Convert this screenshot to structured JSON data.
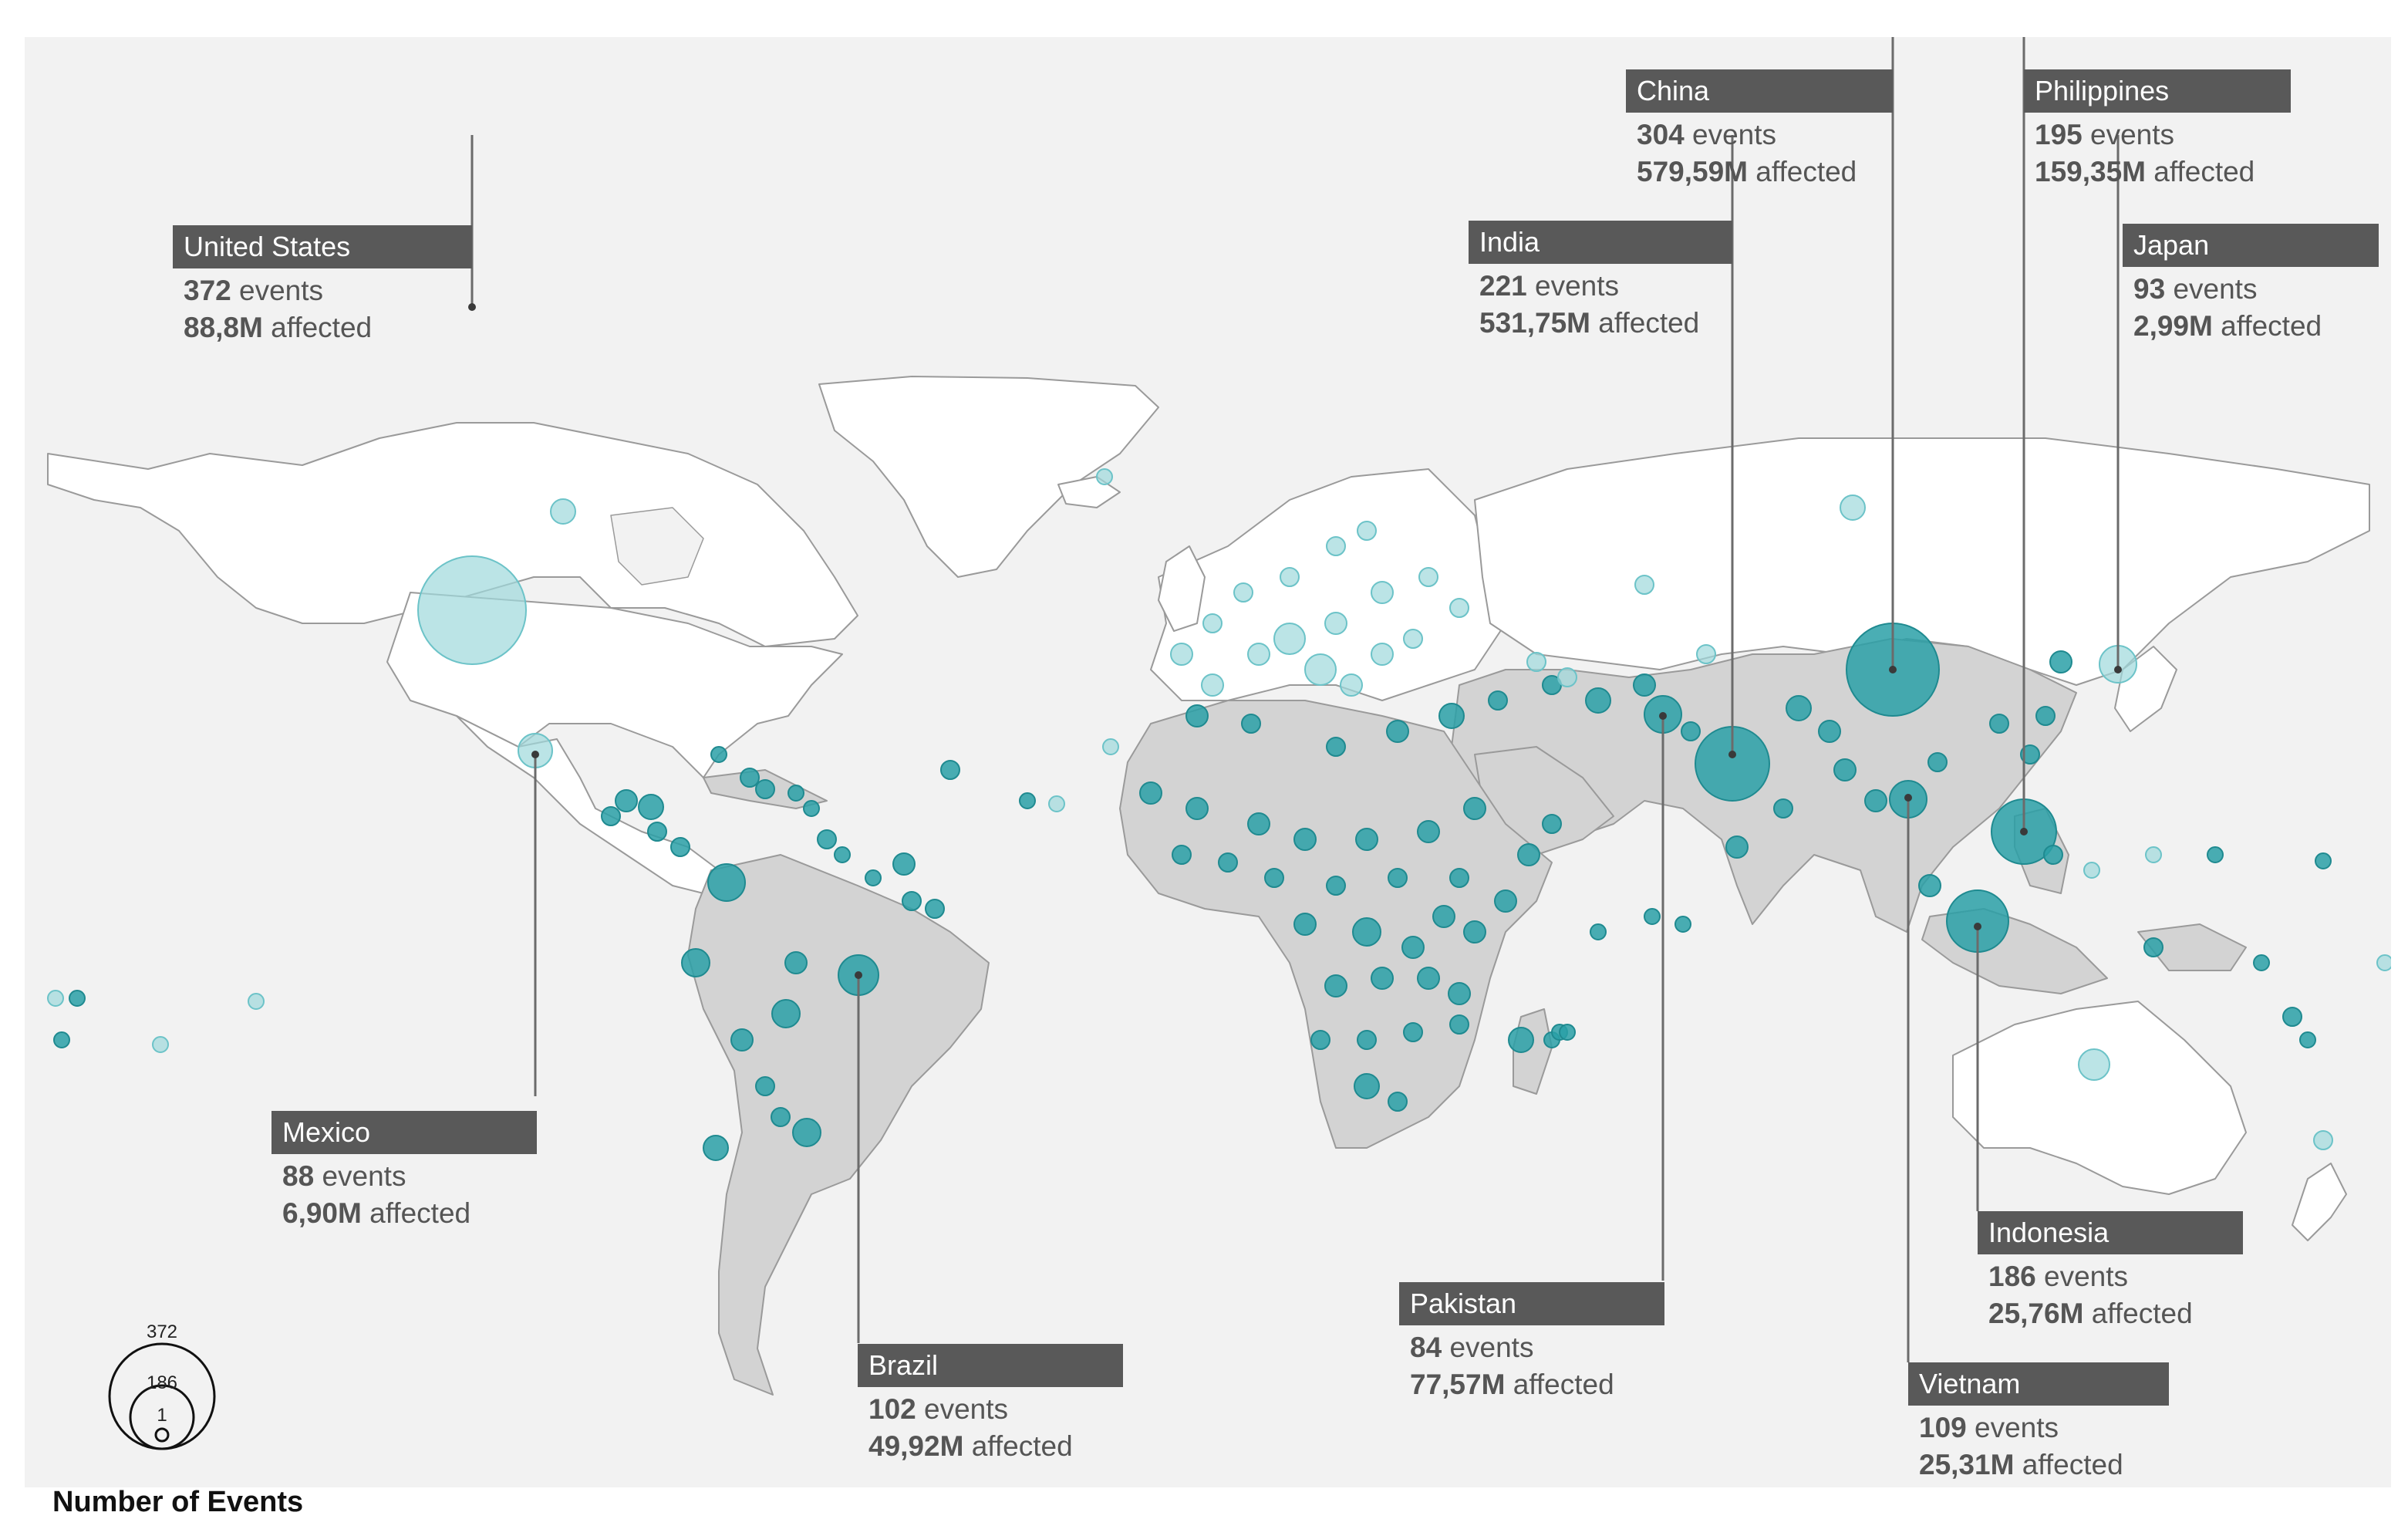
{
  "title": "",
  "palette": {
    "background": "#f2f2f2",
    "land_white": "#ffffff",
    "land_affected": "#d3d3d3",
    "bubble_dark": "#2aa0a7",
    "bubble_light": "#9ed9dc",
    "label_box": "#595959"
  },
  "chart_data": {
    "type": "bubble-map",
    "metric": "Number of Events",
    "callouts": [
      {
        "country": "United States",
        "events": "372",
        "events_unit": "events",
        "affected": "88,8M",
        "affected_unit": "affected"
      },
      {
        "country": "Mexico",
        "events": "88",
        "events_unit": "events",
        "affected": "6,90M",
        "affected_unit": "affected"
      },
      {
        "country": "Brazil",
        "events": "102",
        "events_unit": "events",
        "affected": "49,92M",
        "affected_unit": "affected"
      },
      {
        "country": "India",
        "events": "221",
        "events_unit": "events",
        "affected": "531,75M",
        "affected_unit": "affected"
      },
      {
        "country": "China",
        "events": "304",
        "events_unit": "events",
        "affected": "579,59M",
        "affected_unit": "affected"
      },
      {
        "country": "Pakistan",
        "events": "84",
        "events_unit": "events",
        "affected": "77,57M",
        "affected_unit": "affected"
      },
      {
        "country": "Philippines",
        "events": "195",
        "events_unit": "events",
        "affected": "159,35M",
        "affected_unit": "affected"
      },
      {
        "country": "Japan",
        "events": "93",
        "events_unit": "events",
        "affected": "2,99M",
        "affected_unit": "affected"
      },
      {
        "country": "Indonesia",
        "events": "186",
        "events_unit": "events",
        "affected": "25,76M",
        "affected_unit": "affected"
      },
      {
        "country": "Vietnam",
        "events": "109",
        "events_unit": "events",
        "affected": "25,31M",
        "affected_unit": "affected"
      }
    ]
  },
  "legend": {
    "title": "Number of Events",
    "values": [
      "372",
      "186",
      "1"
    ]
  }
}
